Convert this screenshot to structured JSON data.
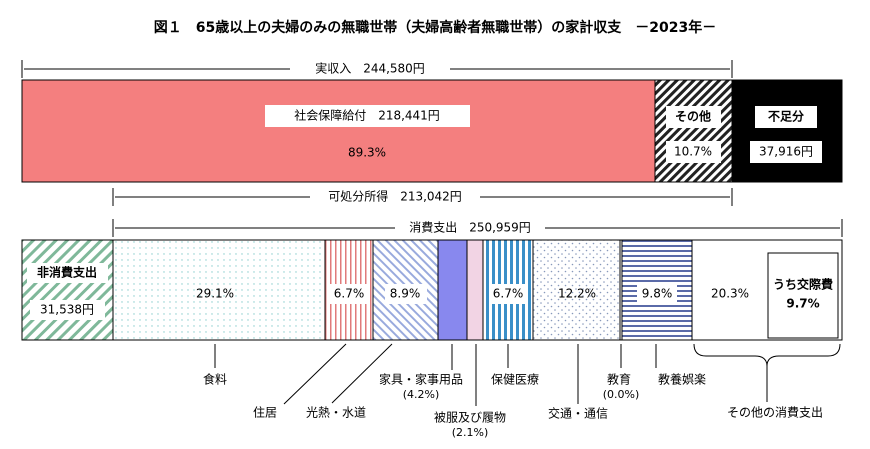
{
  "title": "図１　65歳以上の夫婦のみの無職世帯（夫婦高齢者無職世帯）の家計収支　－2023年－",
  "brackets": [
    {
      "label": "実収入　244,580円"
    },
    {
      "label": "可処分所得　213,042円"
    },
    {
      "label": "消費支出　250,959円"
    }
  ],
  "income": [
    {
      "label": "社会保障給付　218,441円",
      "share": "89.3%"
    },
    {
      "label": "その他",
      "share": "10.7%"
    },
    {
      "label": "不足分",
      "amount": "37,916円"
    }
  ],
  "expenses": [
    {
      "label": "非消費支出",
      "amount": "31,538円"
    },
    {
      "label": "食料",
      "share": "29.1%"
    },
    {
      "label": "住居",
      "share": "6.7%"
    },
    {
      "label": "光熱・水道",
      "share": "8.9%"
    },
    {
      "label": "家具・家事用品",
      "share": "(4.2%)"
    },
    {
      "label": "被服及び履物",
      "share": "(2.1%)"
    },
    {
      "label": "保健医療",
      "share": "6.7%"
    },
    {
      "label": "交通・通信",
      "share": "12.2%"
    },
    {
      "label": "教育",
      "share": "(0.0%)"
    },
    {
      "label": "教養娯楽",
      "share": "9.8%"
    },
    {
      "label": "その他の消費支出",
      "share": "20.3%"
    }
  ],
  "sub": {
    "label": "うち交際費",
    "share": "9.7%"
  }
}
